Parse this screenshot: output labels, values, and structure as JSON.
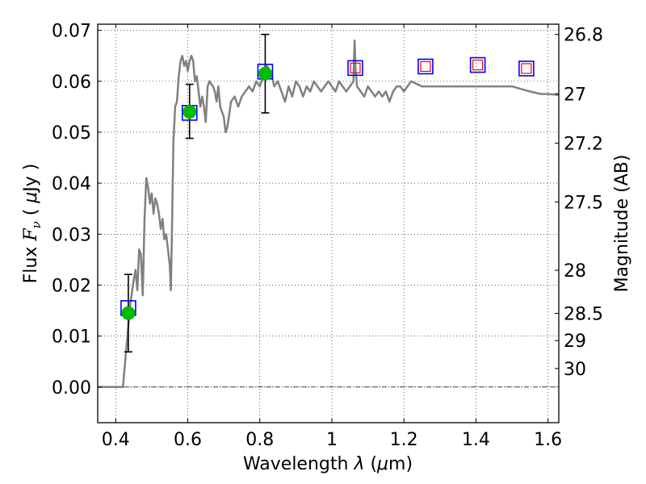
{
  "chart_data": {
    "type": "scatter",
    "xlabel": {
      "prefix": "Wavelength  ",
      "symbol": "λ",
      "unit_open": " (",
      "unit_mu": "μ",
      "unit_rest": "m)"
    },
    "ylabel": {
      "prefix": "Flux  ",
      "symbol": "F",
      "sub": "ν",
      "unit_open": "  ( ",
      "unit_mu": "μ",
      "unit_rest": "Jy )"
    },
    "y2label": "Magnitude (AB)",
    "xlim": [
      0.35,
      1.63
    ],
    "ylim": [
      -0.007,
      0.0712
    ],
    "grid": true,
    "xticks": [
      {
        "v": 0.4,
        "label": "0.4"
      },
      {
        "v": 0.6,
        "label": "0.6"
      },
      {
        "v": 0.8,
        "label": "0.8"
      },
      {
        "v": 1.0,
        "label": "1"
      },
      {
        "v": 1.2,
        "label": "1.2"
      },
      {
        "v": 1.4,
        "label": "1.4"
      },
      {
        "v": 1.6,
        "label": "1.6"
      }
    ],
    "yticks": [
      {
        "v": 0.0,
        "label": "0.00"
      },
      {
        "v": 0.01,
        "label": "0.01"
      },
      {
        "v": 0.02,
        "label": "0.02"
      },
      {
        "v": 0.03,
        "label": "0.03"
      },
      {
        "v": 0.04,
        "label": "0.04"
      },
      {
        "v": 0.05,
        "label": "0.05"
      },
      {
        "v": 0.06,
        "label": "0.06"
      },
      {
        "v": 0.07,
        "label": "0.07"
      }
    ],
    "y2ticks": [
      {
        "v": 26.8,
        "label": "26.8"
      },
      {
        "v": 27.0,
        "label": "27"
      },
      {
        "v": 27.2,
        "label": "27.2"
      },
      {
        "v": 27.5,
        "label": "27.5"
      },
      {
        "v": 28.0,
        "label": "28"
      },
      {
        "v": 28.5,
        "label": "28.5"
      },
      {
        "v": 29.0,
        "label": "29"
      },
      {
        "v": 30.0,
        "label": "30"
      }
    ],
    "zero_line": 0.0,
    "colors": {
      "spectrum": "#808080",
      "model_marker": "#0000ff",
      "obs_marker": "#00bb00",
      "upper_marker": "#ff0000",
      "errorbar": "#000000"
    },
    "series": [
      {
        "kind": "spectrum_line",
        "points": [
          [
            0.35,
            0.0
          ],
          [
            0.41,
            0.0
          ],
          [
            0.42,
            0.0
          ],
          [
            0.43,
            0.008
          ],
          [
            0.44,
            0.016
          ],
          [
            0.45,
            0.021
          ],
          [
            0.455,
            0.023
          ],
          [
            0.46,
            0.019
          ],
          [
            0.465,
            0.027
          ],
          [
            0.47,
            0.026
          ],
          [
            0.475,
            0.018
          ],
          [
            0.48,
            0.033
          ],
          [
            0.485,
            0.041
          ],
          [
            0.49,
            0.039
          ],
          [
            0.495,
            0.036
          ],
          [
            0.5,
            0.038
          ],
          [
            0.505,
            0.034
          ],
          [
            0.51,
            0.037
          ],
          [
            0.515,
            0.036
          ],
          [
            0.52,
            0.034
          ],
          [
            0.525,
            0.031
          ],
          [
            0.53,
            0.033
          ],
          [
            0.535,
            0.029
          ],
          [
            0.54,
            0.03
          ],
          [
            0.545,
            0.027
          ],
          [
            0.55,
            0.024
          ],
          [
            0.553,
            0.019
          ],
          [
            0.556,
            0.03
          ],
          [
            0.56,
            0.048
          ],
          [
            0.565,
            0.055
          ],
          [
            0.57,
            0.056
          ],
          [
            0.575,
            0.061
          ],
          [
            0.58,
            0.064
          ],
          [
            0.585,
            0.065
          ],
          [
            0.59,
            0.063
          ],
          [
            0.595,
            0.064
          ],
          [
            0.6,
            0.062
          ],
          [
            0.605,
            0.064
          ],
          [
            0.61,
            0.065
          ],
          [
            0.615,
            0.064
          ],
          [
            0.62,
            0.06
          ],
          [
            0.625,
            0.061
          ],
          [
            0.63,
            0.058
          ],
          [
            0.635,
            0.055
          ],
          [
            0.64,
            0.057
          ],
          [
            0.645,
            0.055
          ],
          [
            0.65,
            0.052
          ],
          [
            0.655,
            0.059
          ],
          [
            0.66,
            0.06
          ],
          [
            0.67,
            0.059
          ],
          [
            0.675,
            0.058
          ],
          [
            0.68,
            0.056
          ],
          [
            0.685,
            0.059
          ],
          [
            0.69,
            0.055
          ],
          [
            0.7,
            0.053
          ],
          [
            0.705,
            0.05
          ],
          [
            0.71,
            0.051
          ],
          [
            0.72,
            0.056
          ],
          [
            0.73,
            0.057
          ],
          [
            0.74,
            0.055
          ],
          [
            0.75,
            0.057
          ],
          [
            0.76,
            0.058
          ],
          [
            0.77,
            0.059
          ],
          [
            0.78,
            0.058
          ],
          [
            0.79,
            0.06
          ],
          [
            0.8,
            0.059
          ],
          [
            0.81,
            0.061
          ],
          [
            0.82,
            0.063
          ],
          [
            0.83,
            0.062
          ],
          [
            0.84,
            0.059
          ],
          [
            0.85,
            0.06
          ],
          [
            0.86,
            0.058
          ],
          [
            0.87,
            0.056
          ],
          [
            0.88,
            0.059
          ],
          [
            0.89,
            0.057
          ],
          [
            0.9,
            0.06
          ],
          [
            0.91,
            0.059
          ],
          [
            0.92,
            0.057
          ],
          [
            0.93,
            0.059
          ],
          [
            0.94,
            0.058
          ],
          [
            0.95,
            0.06
          ],
          [
            0.96,
            0.059
          ],
          [
            0.97,
            0.058
          ],
          [
            0.98,
            0.059
          ],
          [
            0.99,
            0.06
          ],
          [
            1.0,
            0.059
          ],
          [
            1.01,
            0.058
          ],
          [
            1.02,
            0.06
          ],
          [
            1.03,
            0.059
          ],
          [
            1.04,
            0.058
          ],
          [
            1.05,
            0.059
          ],
          [
            1.06,
            0.06
          ],
          [
            1.063,
            0.068
          ],
          [
            1.066,
            0.062
          ],
          [
            1.07,
            0.059
          ],
          [
            1.08,
            0.058
          ],
          [
            1.09,
            0.057
          ],
          [
            1.1,
            0.059
          ],
          [
            1.11,
            0.058
          ],
          [
            1.12,
            0.057
          ],
          [
            1.13,
            0.058
          ],
          [
            1.14,
            0.057
          ],
          [
            1.15,
            0.058
          ],
          [
            1.16,
            0.056
          ],
          [
            1.17,
            0.058
          ],
          [
            1.18,
            0.059
          ],
          [
            1.19,
            0.059
          ],
          [
            1.2,
            0.058
          ],
          [
            1.21,
            0.059
          ],
          [
            1.22,
            0.06
          ],
          [
            1.25,
            0.059
          ],
          [
            1.3,
            0.059
          ],
          [
            1.35,
            0.059
          ],
          [
            1.4,
            0.059
          ],
          [
            1.45,
            0.059
          ],
          [
            1.5,
            0.059
          ],
          [
            1.55,
            0.058
          ],
          [
            1.58,
            0.0575
          ],
          [
            1.6,
            0.0575
          ],
          [
            1.63,
            0.0573
          ]
        ]
      },
      {
        "kind": "model_squares",
        "points": [
          [
            0.435,
            0.0155
          ],
          [
            0.605,
            0.0538
          ],
          [
            0.815,
            0.0619
          ],
          [
            1.065,
            0.0626
          ],
          [
            1.26,
            0.0629
          ],
          [
            1.405,
            0.0632
          ],
          [
            1.54,
            0.0625
          ]
        ]
      },
      {
        "kind": "upper_limit_squares",
        "points": [
          [
            1.065,
            0.0626
          ],
          [
            1.26,
            0.0629
          ],
          [
            1.405,
            0.0632
          ],
          [
            1.54,
            0.0625
          ]
        ]
      },
      {
        "kind": "observed_points",
        "points": [
          {
            "x": 0.435,
            "y": 0.0145,
            "yerr_low": 0.0069,
            "yerr_high": 0.0221
          },
          {
            "x": 0.605,
            "y": 0.054,
            "yerr_low": 0.0488,
            "yerr_high": 0.0594
          },
          {
            "x": 0.815,
            "y": 0.0615,
            "yerr_low": 0.0538,
            "yerr_high": 0.0692
          }
        ]
      }
    ]
  }
}
